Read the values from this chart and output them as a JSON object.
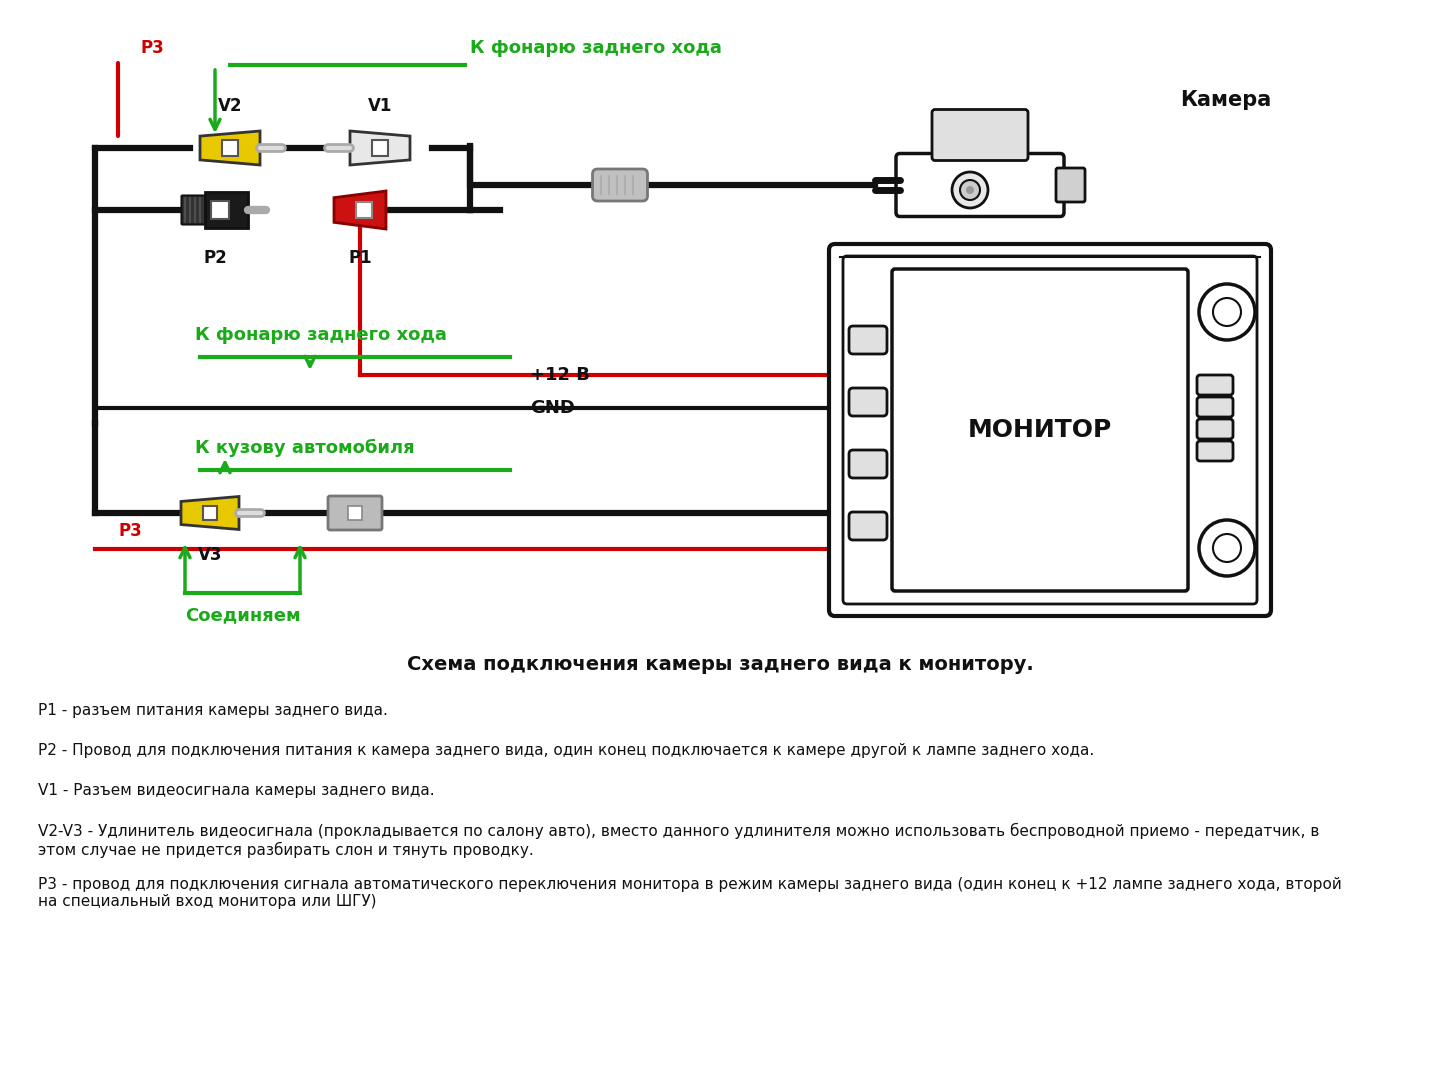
{
  "bg_color": "#ffffff",
  "title_diagram": "Схема подключения камеры заднего вида к монитору.",
  "label_camera": "Камера",
  "label_monitor": "МОНИТОР",
  "label_v1": "V1",
  "label_v2": "V2",
  "label_v3": "V3",
  "label_p1": "P1",
  "label_p2": "P2",
  "label_p3": "P3",
  "label_12v": "+12 В",
  "label_gnd": "GND",
  "label_k_fonarju": "К фонарю заднего хода",
  "label_k_kuzovu": "К кузову автомобиля",
  "label_soedinyaem": "Соединяем",
  "color_green": "#1aaa1a",
  "color_red": "#cc0000",
  "color_black": "#111111",
  "color_yellow": "#e8c800",
  "color_gray_light": "#cccccc",
  "color_gray_dark": "#888888",
  "color_white": "#ffffff",
  "desc_p1": "P1 - разъем питания камеры заднего вида.",
  "desc_p2": "P2 - Провод для подключения питания к камера заднего вида, один конец подключается к камере другой к лампе заднего хода.",
  "desc_v1": "V1 - Разъем видеосигнала камеры заднего вида.",
  "desc_v2v3": "V2-V3 - Удлинитель видеосигнала (прокладывается по салону авто), вместо данного удлинителя можно использовать беспроводной приемо - передатчик, в\nэтом случае не придется разбирать слон и тянуть проводку.",
  "desc_p3": "P3 - провод для подключения сигнала автоматического переключения монитора в режим камеры заднего вида (один конец к +12 лампе заднего хода, второй\nна специальный вход монитора или ШГУ)"
}
